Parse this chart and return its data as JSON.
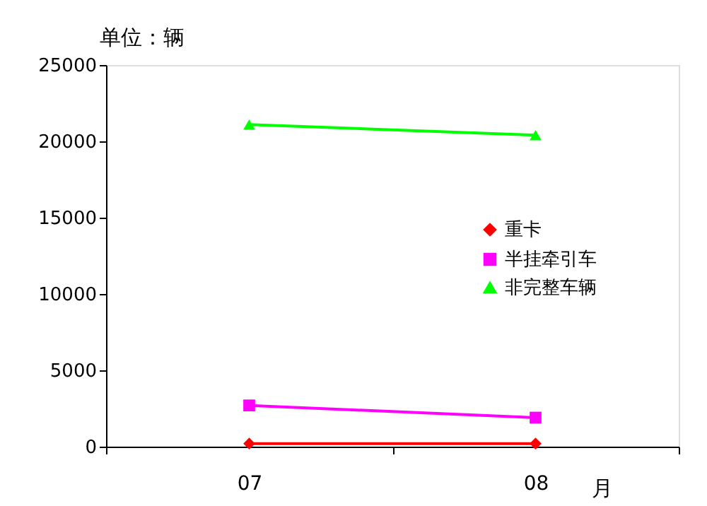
{
  "chart_data": {
    "type": "line",
    "ylabel": "单位：辆",
    "xlabel": "月",
    "categories": [
      "07",
      "08"
    ],
    "series": [
      {
        "name": "重卡",
        "color": "#ff0000",
        "marker": "diamond",
        "values": [
          200,
          200
        ]
      },
      {
        "name": "半挂牵引车",
        "color": "#ff00ff",
        "marker": "square",
        "values": [
          2700,
          1900
        ]
      },
      {
        "name": "非完整车辆",
        "color": "#00ff00",
        "marker": "triangle",
        "values": [
          21100,
          20400
        ]
      }
    ],
    "ylim": [
      0,
      25000
    ],
    "yticks": [
      0,
      5000,
      10000,
      15000,
      20000,
      25000
    ],
    "grid": false,
    "legend": "right"
  }
}
